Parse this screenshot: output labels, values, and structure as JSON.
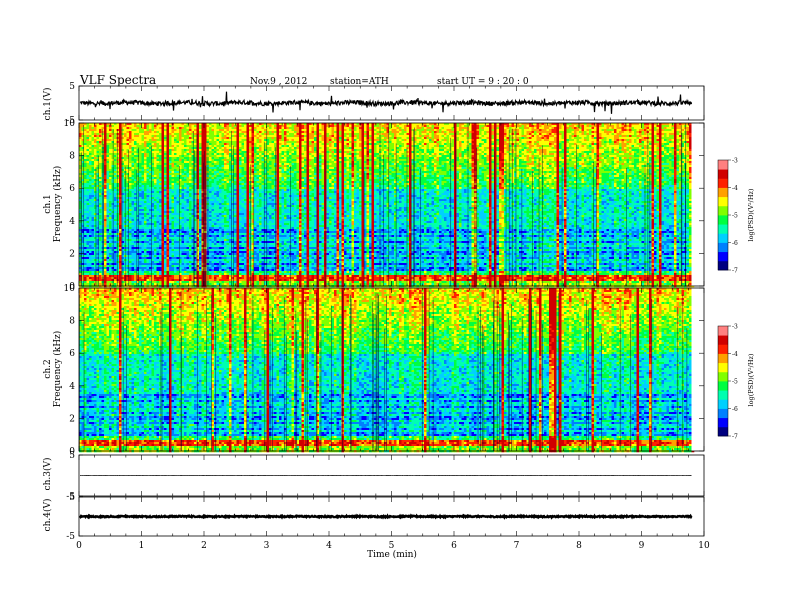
{
  "header": {
    "title": "VLF  Spectra",
    "date": "Nov.9  , 2012",
    "station": "station=ATH",
    "start": "start  UT  =   9 : 20 : 0"
  },
  "chart_data": [
    {
      "type": "line",
      "name": "ch1-waveform",
      "ylabel": "ch.1(V)",
      "ylim": [
        -5,
        5
      ],
      "yticks": [
        "5",
        "-5"
      ],
      "xlim": [
        0,
        10
      ],
      "xlabel": "",
      "x_end": 9.8,
      "baseline": 0,
      "noise_amplitude": 1.1
    },
    {
      "type": "heatmap",
      "name": "ch1-spectrogram",
      "ylabel_channel": "ch.1",
      "ylabel": "Frequency  (kHz)",
      "ylim": [
        0,
        10
      ],
      "yticks": [
        "0",
        "2",
        "4",
        "6",
        "8",
        "10"
      ],
      "xlim": [
        0,
        10
      ],
      "x_end": 9.8,
      "colorbar": {
        "label": "log(PSD)(V²/Hz)",
        "range": [
          -7,
          -3
        ],
        "ticks": [
          "-3",
          "-4",
          "-5",
          "-6",
          "-7"
        ]
      },
      "features": {
        "strong_band_khz": [
          0.4,
          0.7
        ],
        "low_band_khz": [
          1.0,
          3.6
        ],
        "high_band_khz": [
          6.0,
          10.0
        ]
      }
    },
    {
      "type": "heatmap",
      "name": "ch2-spectrogram",
      "ylabel_channel": "ch.2",
      "ylabel": "Frequency  (kHz)",
      "ylim": [
        0,
        10
      ],
      "yticks": [
        "0",
        "2",
        "4",
        "6",
        "8",
        "10"
      ],
      "xlim": [
        0,
        10
      ],
      "x_end": 9.8,
      "colorbar": {
        "label": "log(PSD)(V²/Hz)",
        "range": [
          -7,
          -3
        ],
        "ticks": [
          "-3",
          "-4",
          "-5",
          "-6",
          "-7"
        ]
      },
      "features": {
        "strong_band_khz": [
          0.4,
          0.7
        ],
        "low_band_khz": [
          1.0,
          3.6
        ],
        "high_band_khz": [
          6.0,
          10.0
        ]
      }
    },
    {
      "type": "line",
      "name": "ch3-waveform",
      "ylabel": "ch.3(V)",
      "ylim": [
        -5,
        5
      ],
      "yticks": [
        "5",
        "-5"
      ],
      "xlim": [
        0,
        10
      ],
      "x_end": 9.8,
      "baseline": 0,
      "noise_amplitude": 0.05
    },
    {
      "type": "line",
      "name": "ch4-waveform",
      "ylabel": "ch.4(V)",
      "ylim": [
        -5,
        5
      ],
      "yticks": [
        "5",
        "-5"
      ],
      "xlim": [
        0,
        10
      ],
      "xlabel": "Time  (min)",
      "xticks": [
        "0",
        "1",
        "2",
        "3",
        "4",
        "5",
        "6",
        "7",
        "8",
        "9",
        "10"
      ],
      "x_end": 9.8,
      "baseline": 0,
      "noise_amplitude": 0.25
    }
  ],
  "colormap": [
    "#000000",
    "#000080",
    "#0000ff",
    "#0080ff",
    "#00d0ff",
    "#00ffb0",
    "#00ff40",
    "#80ff00",
    "#ffff00",
    "#ffa000",
    "#ff2000",
    "#d00000",
    "#ff8080",
    "#ffffff"
  ]
}
